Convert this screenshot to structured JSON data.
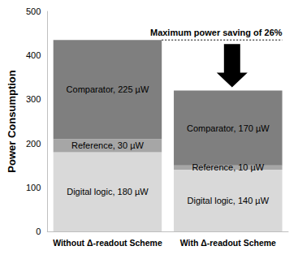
{
  "chart_data": {
    "type": "bar",
    "stacked": true,
    "data_labels": true,
    "grid": false,
    "categories": [
      "Without Δ-readout Scheme",
      "With Δ-readout Scheme"
    ],
    "y_label": "Power Consumption",
    "annotation": "Maximum power saving of 26%",
    "ylim": [
      0,
      500
    ],
    "yticks": [
      0,
      100,
      200,
      300,
      400,
      500
    ],
    "series": [
      {
        "name": "Digital logic",
        "color": "#d9d9d9",
        "values": [
          180,
          140
        ],
        "value_labels": [
          "Digital logic, 180 µW",
          "Digital logic, 140 µW"
        ]
      },
      {
        "name": "Reference",
        "color": "#a6a6a6",
        "values": [
          30,
          10
        ],
        "value_labels": [
          "Reference, 30 µW",
          "Reference, 10 µW"
        ]
      },
      {
        "name": "Comparator",
        "color": "#7f7f7f",
        "values": [
          225,
          170
        ],
        "value_labels": [
          "Comparator, 225 µW",
          "Comparator, 170 µW"
        ]
      }
    ]
  }
}
